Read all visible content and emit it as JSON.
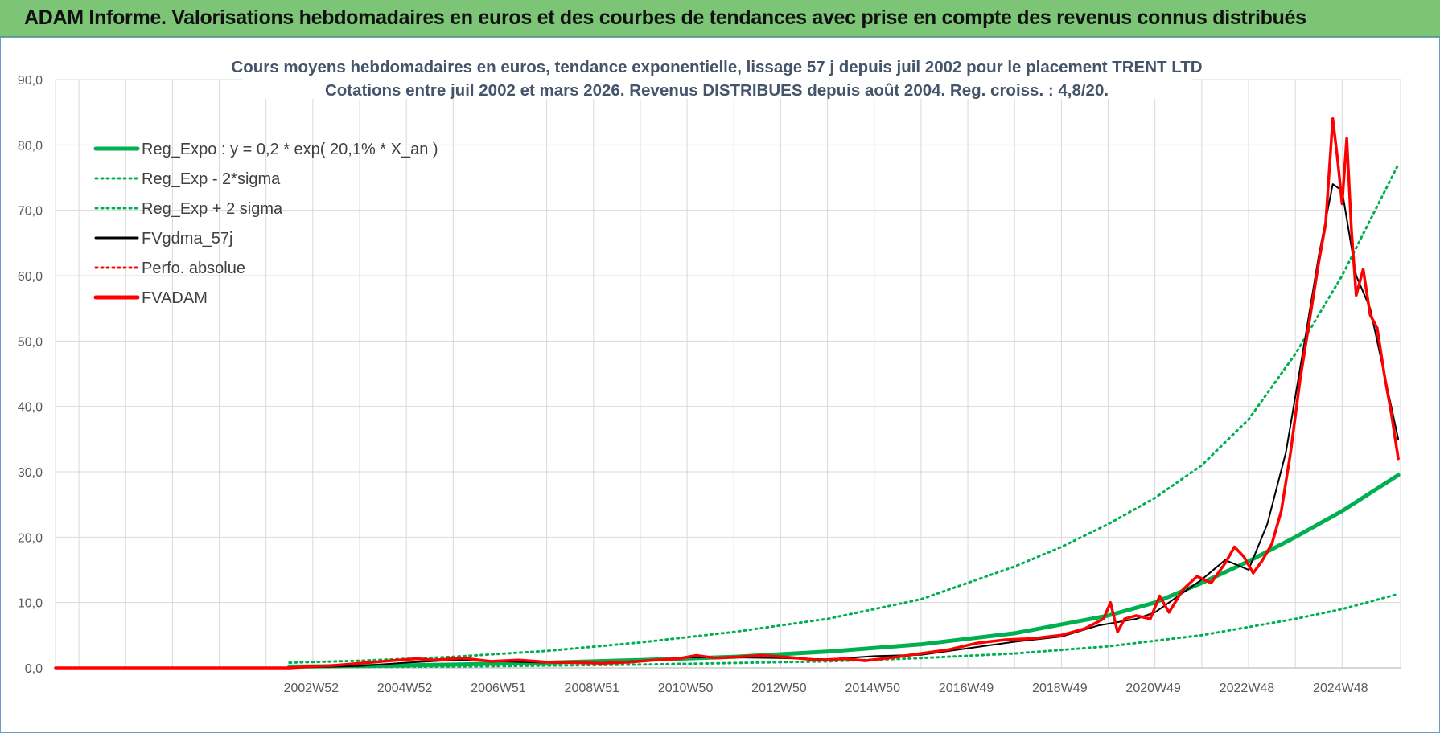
{
  "banner": {
    "title": "ADAM Informe. Valorisations hebdomadaires en euros et des courbes de tendances avec prise en compte des revenus connus distribués"
  },
  "colors": {
    "banner_bg": "#7cc576",
    "reg_expo": "#00b050",
    "fvgdma": "#000000",
    "fvadam": "#ff0000",
    "grid": "#d9d9d9"
  },
  "chart_data": {
    "type": "line",
    "title_line1": "Cours moyens hebdomadaires en euros, tendance exponentielle, lissage 57 j depuis juil 2002 pour le placement TRENT LTD",
    "title_line2": "Cotations entre juil 2002 et mars 2026. Revenus DISTRIBUES depuis août 2004. Reg. croiss. : 4,8/20.",
    "xlabel": "",
    "ylabel": "",
    "ylim": [
      0,
      90
    ],
    "x_range": [
      1997.5,
      2026.25
    ],
    "y_ticks": [
      "0,0",
      "10,0",
      "20,0",
      "30,0",
      "40,0",
      "50,0",
      "60,0",
      "70,0",
      "80,0",
      "90,0"
    ],
    "x_ticks": [
      {
        "label": "2002W52",
        "x": 2003.0
      },
      {
        "label": "2004W52",
        "x": 2005.0
      },
      {
        "label": "2006W51",
        "x": 2007.0
      },
      {
        "label": "2008W51",
        "x": 2009.0
      },
      {
        "label": "2010W50",
        "x": 2011.0
      },
      {
        "label": "2012W50",
        "x": 2013.0
      },
      {
        "label": "2014W50",
        "x": 2015.0
      },
      {
        "label": "2016W49",
        "x": 2017.0
      },
      {
        "label": "2018W49",
        "x": 2019.0
      },
      {
        "label": "2020W49",
        "x": 2021.0
      },
      {
        "label": "2022W48",
        "x": 2023.0
      },
      {
        "label": "2024W48",
        "x": 2025.0
      }
    ],
    "legend": [
      {
        "key": "reg_expo",
        "label": "Reg_Expo : y = 0,2 * exp( 20,1% *  X_an )",
        "color": "#00b050",
        "style": "solid-thick"
      },
      {
        "key": "reg_minus",
        "label": "Reg_Exp - 2*sigma",
        "color": "#00b050",
        "style": "dotted"
      },
      {
        "key": "reg_plus",
        "label": "Reg_Exp + 2 sigma",
        "color": "#00b050",
        "style": "dotted"
      },
      {
        "key": "fvgdma",
        "label": "FVgdma_57j",
        "color": "#000000",
        "style": "solid"
      },
      {
        "key": "perfo",
        "label": "Perfo. absolue",
        "color": "#ff0000",
        "style": "dotted"
      },
      {
        "key": "fvadam",
        "label": "FVADAM",
        "color": "#ff0000",
        "style": "solid-thick"
      }
    ],
    "series": [
      {
        "name": "Reg_Expo",
        "color": "#00b050",
        "x": [
          2002.5,
          2004,
          2006,
          2008,
          2010,
          2012,
          2014,
          2016,
          2018,
          2020,
          2021,
          2022,
          2023,
          2024,
          2025,
          2026.2
        ],
        "values": [
          0.2,
          0.3,
          0.5,
          0.8,
          1.2,
          1.7,
          2.5,
          3.6,
          5.3,
          8.0,
          10.0,
          13.0,
          16.3,
          20.0,
          24.0,
          29.5
        ]
      },
      {
        "name": "Reg_Exp - 2*sigma",
        "color": "#00b050",
        "x": [
          2002.5,
          2006,
          2010,
          2014,
          2016,
          2018,
          2020,
          2022,
          2024,
          2025,
          2026.2
        ],
        "values": [
          0.1,
          0.2,
          0.5,
          1.0,
          1.5,
          2.2,
          3.3,
          5.0,
          7.5,
          9.0,
          11.3
        ]
      },
      {
        "name": "Reg_Exp + 2 sigma",
        "color": "#00b050",
        "x": [
          2002.5,
          2004,
          2006,
          2008,
          2010,
          2012,
          2014,
          2016,
          2018,
          2019,
          2020,
          2021,
          2022,
          2023,
          2024,
          2025,
          2026.2
        ],
        "values": [
          0.8,
          1.1,
          1.7,
          2.6,
          3.9,
          5.5,
          7.5,
          10.5,
          15.5,
          18.5,
          22.0,
          26.0,
          31.0,
          38.0,
          48.0,
          60.0,
          77.0
        ]
      },
      {
        "name": "FVgdma_57j",
        "color": "#000000",
        "x": [
          1997.5,
          2002.5,
          2004,
          2005,
          2006,
          2007,
          2008,
          2009,
          2010,
          2011,
          2012,
          2013,
          2014,
          2015,
          2016,
          2017,
          2018,
          2019,
          2019.8,
          2020.2,
          2020.6,
          2021,
          2021.5,
          2022,
          2022.5,
          2023,
          2023.4,
          2023.8,
          2024.2,
          2024.5,
          2024.8,
          2025.0,
          2025.3,
          2025.6,
          2025.9,
          2026.2
        ],
        "values": [
          0,
          0,
          0.3,
          0.8,
          1.2,
          1.0,
          0.8,
          0.7,
          1.1,
          1.6,
          1.6,
          1.5,
          1.3,
          1.8,
          2.0,
          3.0,
          4.0,
          4.8,
          6.5,
          7.0,
          7.5,
          8.5,
          11.0,
          13.5,
          16.5,
          15.0,
          22.0,
          33.0,
          50.0,
          63.0,
          74.0,
          73.0,
          60.0,
          55.0,
          45.0,
          35.0
        ]
      },
      {
        "name": "FVADAM",
        "color": "#ff0000",
        "x": [
          1997.5,
          2002.5,
          2003.5,
          2004.5,
          2005.2,
          2005.6,
          2006.2,
          2006.8,
          2007.4,
          2008,
          2008.6,
          2009.2,
          2009.8,
          2010.3,
          2010.8,
          2011.2,
          2011.6,
          2012.1,
          2012.6,
          2013.2,
          2013.8,
          2014.4,
          2014.8,
          2015.4,
          2016,
          2016.6,
          2017.2,
          2017.8,
          2018.4,
          2019,
          2019.5,
          2019.9,
          2020.05,
          2020.2,
          2020.35,
          2020.6,
          2020.9,
          2021.1,
          2021.3,
          2021.6,
          2021.9,
          2022.2,
          2022.5,
          2022.7,
          2022.9,
          2023.1,
          2023.3,
          2023.5,
          2023.7,
          2023.9,
          2024.1,
          2024.3,
          2024.5,
          2024.65,
          2024.8,
          2024.9,
          2025.0,
          2025.1,
          2025.2,
          2025.3,
          2025.45,
          2025.6,
          2025.75,
          2025.9,
          2026.05,
          2026.2
        ],
        "values": [
          0,
          0,
          0.4,
          1.0,
          1.4,
          1.2,
          1.5,
          1.0,
          1.2,
          0.9,
          0.8,
          0.7,
          0.9,
          1.2,
          1.4,
          1.9,
          1.5,
          1.7,
          1.9,
          1.6,
          1.2,
          1.4,
          1.1,
          1.6,
          2.2,
          2.8,
          3.8,
          4.3,
          4.5,
          5.0,
          6.0,
          7.5,
          10.0,
          5.5,
          7.5,
          8.0,
          7.5,
          11.0,
          8.5,
          12.0,
          14.0,
          13.0,
          16.0,
          18.5,
          17.0,
          14.5,
          16.5,
          19.0,
          24.0,
          33.0,
          44.0,
          53.0,
          62.0,
          68.0,
          84.0,
          78.0,
          71.0,
          81.0,
          67.0,
          57.0,
          61.0,
          54.0,
          52.0,
          45.0,
          39.0,
          32.0
        ]
      }
    ]
  }
}
